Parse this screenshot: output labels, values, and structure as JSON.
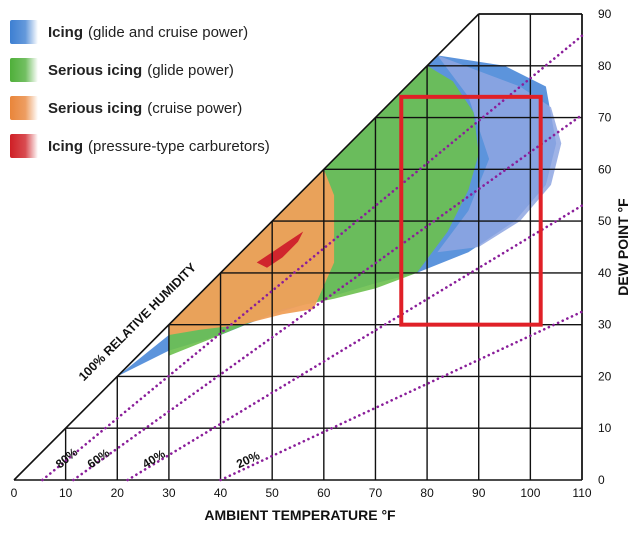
{
  "chart_data": {
    "type": "area",
    "title": "",
    "xlabel": "AMBIENT TEMPERATURE  °F",
    "ylabel": "DEW POINT  °F",
    "xlim": [
      0,
      110
    ],
    "ylim": [
      0,
      90
    ],
    "x_ticks": [
      0,
      10,
      20,
      30,
      40,
      50,
      60,
      70,
      80,
      90,
      100,
      110
    ],
    "y_ticks": [
      0,
      10,
      20,
      30,
      40,
      50,
      60,
      70,
      80,
      90
    ],
    "x_tick_labels": [
      "0",
      "10",
      "20",
      "30",
      "40",
      "50",
      "60",
      "70",
      "80",
      "90",
      "100",
      "110"
    ],
    "y_tick_labels": [
      "0",
      "10",
      "20",
      "30",
      "40",
      "50",
      "60",
      "70",
      "80",
      "90"
    ],
    "grid": true,
    "saturation_line_label": "100% RELATIVE HUMIDITY",
    "humidity_lines": [
      {
        "label": "80%",
        "points": [
          [
            5.5,
            0
          ],
          [
            110,
            85.8
          ]
        ]
      },
      {
        "label": "60%",
        "points": [
          [
            11.5,
            0
          ],
          [
            110,
            70.5
          ]
        ]
      },
      {
        "label": "40%",
        "points": [
          [
            22,
            0
          ],
          [
            110,
            53
          ]
        ]
      },
      {
        "label": "20%",
        "points": [
          [
            40,
            0
          ],
          [
            110,
            32.5
          ]
        ]
      }
    ],
    "legend": [
      {
        "bold": "Icing",
        "rest": "(glide and cruise power)",
        "color": "#3d7fd2"
      },
      {
        "bold": "Serious icing",
        "rest": "(glide power)",
        "color": "#4faf3a"
      },
      {
        "bold": "Serious icing",
        "rest": "(cruise power)",
        "color": "#e9853a"
      },
      {
        "bold": "Icing",
        "rest": "(pressure-type carburetors)",
        "color": "#cf1f25"
      }
    ],
    "legend_placement": "top-left",
    "regions": [
      {
        "name": "Icing (glide and cruise power)",
        "color": "#4a88d8",
        "opacity": 0.9,
        "points": [
          [
            10,
            10
          ],
          [
            12,
            12
          ],
          [
            20,
            20
          ],
          [
            30,
            28
          ],
          [
            40,
            40
          ],
          [
            60,
            60
          ],
          [
            82,
            82
          ],
          [
            95,
            80
          ],
          [
            103,
            76
          ],
          [
            105,
            65
          ],
          [
            103,
            57
          ],
          [
            97,
            50
          ],
          [
            88,
            44
          ],
          [
            78,
            40
          ],
          [
            70,
            38
          ],
          [
            60,
            35
          ],
          [
            50,
            32
          ],
          [
            40,
            28
          ],
          [
            30,
            25
          ],
          [
            20,
            20
          ],
          [
            12,
            13
          ],
          [
            10,
            10
          ]
        ]
      },
      {
        "name": "Icing (glide and cruise power) outer lobe",
        "color": "#8ea6e2",
        "opacity": 0.85,
        "points": [
          [
            82,
            82
          ],
          [
            90,
            79
          ],
          [
            98,
            76
          ],
          [
            104,
            72
          ],
          [
            106,
            65
          ],
          [
            104,
            57
          ],
          [
            98,
            50
          ],
          [
            90,
            45
          ],
          [
            82,
            44
          ],
          [
            88,
            52
          ],
          [
            92,
            62
          ],
          [
            88,
            74
          ]
        ]
      },
      {
        "name": "Serious icing (glide power)",
        "color": "#6cc04e",
        "opacity": 0.9,
        "points": [
          [
            30,
            24
          ],
          [
            40,
            28
          ],
          [
            52,
            33
          ],
          [
            62,
            35
          ],
          [
            70,
            37
          ],
          [
            78,
            40
          ],
          [
            84,
            48
          ],
          [
            88,
            56
          ],
          [
            90,
            63
          ],
          [
            89,
            71
          ],
          [
            85,
            77
          ],
          [
            80,
            80
          ],
          [
            70,
            70
          ],
          [
            60,
            60
          ],
          [
            50,
            50
          ],
          [
            40,
            40
          ],
          [
            30,
            30
          ]
        ]
      },
      {
        "name": "Serious icing (cruise power)",
        "color": "#f0a05a",
        "opacity": 0.95,
        "points": [
          [
            30,
            28
          ],
          [
            36,
            29
          ],
          [
            44,
            30
          ],
          [
            52,
            32
          ],
          [
            58,
            33
          ],
          [
            62,
            42
          ],
          [
            62,
            55
          ],
          [
            60,
            60
          ],
          [
            50,
            50
          ],
          [
            40,
            40
          ],
          [
            30,
            30
          ]
        ]
      },
      {
        "name": "Icing (pressure-type carburetors)",
        "color": "#d0252d",
        "opacity": 1,
        "points": [
          [
            47,
            42
          ],
          [
            50,
            44
          ],
          [
            53,
            46
          ],
          [
            56,
            48
          ],
          [
            55,
            46
          ],
          [
            52,
            43
          ],
          [
            49,
            41
          ]
        ]
      }
    ],
    "highlight_box": {
      "x": [
        75,
        102
      ],
      "y": [
        30,
        74
      ],
      "color": "#e02027"
    }
  }
}
